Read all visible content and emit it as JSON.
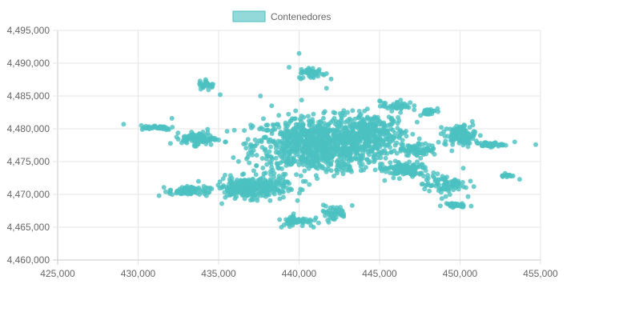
{
  "chart_data": {
    "type": "scatter",
    "title": "",
    "xlabel": "",
    "ylabel": "",
    "legend": {
      "position": "top",
      "entries": [
        {
          "label": "Contenedores",
          "color": "#4bc0c0"
        }
      ]
    },
    "grid": true,
    "xlim": [
      425000,
      455000
    ],
    "ylim": [
      4460000,
      4495000
    ],
    "x_ticks": [
      "425,000",
      "430,000",
      "435,000",
      "440,000",
      "445,000",
      "450,000",
      "455,000"
    ],
    "y_ticks": [
      "4,495,000",
      "4,490,000",
      "4,485,000",
      "4,480,000",
      "4,475,000",
      "4,470,000",
      "4,465,000",
      "4,460,000"
    ],
    "series": [
      {
        "name": "Contenedores",
        "color": "#4bc0c0",
        "clusters": [
          {
            "x": 441000,
            "y": 4477500,
            "sx": 3200,
            "sy": 3500,
            "n": 900
          },
          {
            "x": 444500,
            "y": 4479000,
            "sx": 1800,
            "sy": 2800,
            "n": 320
          },
          {
            "x": 437000,
            "y": 4471000,
            "sx": 1800,
            "sy": 1300,
            "n": 320
          },
          {
            "x": 433000,
            "y": 4470500,
            "sx": 900,
            "sy": 600,
            "n": 70
          },
          {
            "x": 433800,
            "y": 4478500,
            "sx": 900,
            "sy": 800,
            "n": 90
          },
          {
            "x": 431000,
            "y": 4480200,
            "sx": 1100,
            "sy": 300,
            "n": 40
          },
          {
            "x": 434300,
            "y": 4486700,
            "sx": 400,
            "sy": 500,
            "n": 30
          },
          {
            "x": 440800,
            "y": 4488500,
            "sx": 700,
            "sy": 700,
            "n": 50
          },
          {
            "x": 439900,
            "y": 4466000,
            "sx": 800,
            "sy": 700,
            "n": 60
          },
          {
            "x": 442100,
            "y": 4467200,
            "sx": 700,
            "sy": 900,
            "n": 40
          },
          {
            "x": 448000,
            "y": 4482600,
            "sx": 500,
            "sy": 400,
            "n": 30
          },
          {
            "x": 450000,
            "y": 4479000,
            "sx": 800,
            "sy": 1300,
            "n": 110
          },
          {
            "x": 451800,
            "y": 4477600,
            "sx": 700,
            "sy": 300,
            "n": 40
          },
          {
            "x": 449000,
            "y": 4471500,
            "sx": 1100,
            "sy": 1200,
            "n": 90
          },
          {
            "x": 449500,
            "y": 4468400,
            "sx": 600,
            "sy": 300,
            "n": 30
          },
          {
            "x": 446500,
            "y": 4473800,
            "sx": 1300,
            "sy": 1000,
            "n": 110
          },
          {
            "x": 446000,
            "y": 4483500,
            "sx": 800,
            "sy": 600,
            "n": 40
          },
          {
            "x": 452900,
            "y": 4472900,
            "sx": 300,
            "sy": 300,
            "n": 12
          },
          {
            "x": 447500,
            "y": 4476800,
            "sx": 900,
            "sy": 700,
            "n": 70
          }
        ],
        "points": [
          [
            429100,
            4480700
          ],
          [
            430200,
            4480500
          ],
          [
            431300,
            4469800
          ],
          [
            432100,
            4481600
          ],
          [
            434200,
            4487500
          ],
          [
            435100,
            4485200
          ],
          [
            440000,
            4491500
          ],
          [
            440600,
            4489000
          ],
          [
            441700,
            4486200
          ],
          [
            446900,
            4484000
          ],
          [
            448600,
            4483100
          ],
          [
            450800,
            4480600
          ],
          [
            452500,
            4477600
          ],
          [
            453400,
            4478000
          ],
          [
            454700,
            4477600
          ],
          [
            453700,
            4472300
          ],
          [
            452800,
            4473200
          ],
          [
            450200,
            4474000
          ],
          [
            450200,
            4468100
          ],
          [
            438900,
            4465000
          ],
          [
            440900,
            4465000
          ],
          [
            442200,
            4466200
          ],
          [
            443300,
            4468300
          ],
          [
            435200,
            4468600
          ],
          [
            436900,
            4474800
          ],
          [
            437600,
            4485000
          ],
          [
            438300,
            4483500
          ]
        ]
      }
    ]
  }
}
